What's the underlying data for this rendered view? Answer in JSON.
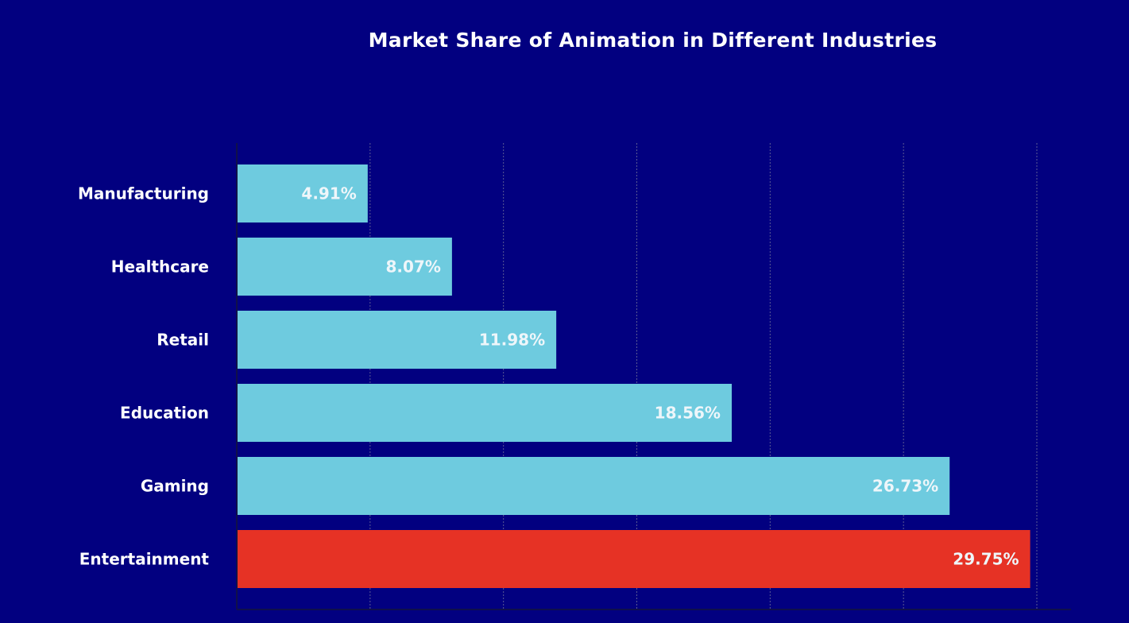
{
  "chart_data": {
    "type": "bar",
    "orientation": "horizontal",
    "title": "Market Share of Animation in Different Industries",
    "xlabel": "",
    "ylabel": "",
    "categories": [
      "Manufacturing",
      "Healthcare",
      "Retail",
      "Education",
      "Gaming",
      "Entertainment"
    ],
    "values": [
      4.91,
      8.07,
      11.98,
      18.56,
      26.73,
      29.75
    ],
    "value_labels": [
      "4.91%",
      "8.07%",
      "11.98%",
      "18.56%",
      "26.73%",
      "29.75%"
    ],
    "xlim": [
      0,
      30
    ],
    "grid": "vertical dotted",
    "highlight_category": "Entertainment"
  },
  "colors": {
    "background": "#020080",
    "bar": "#6ecbdf",
    "highlight": "#e63225",
    "text": "#ffffff",
    "grid": "#7a7a9a"
  }
}
